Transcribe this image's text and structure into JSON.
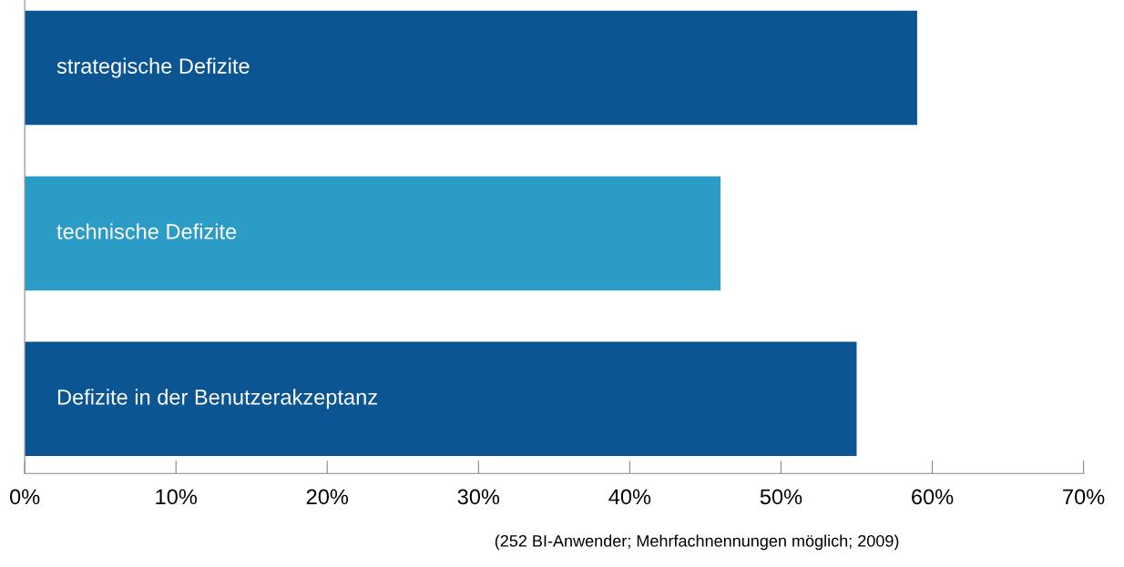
{
  "chart_data": {
    "type": "bar",
    "orientation": "horizontal",
    "categories": [
      "strategische Defizite",
      "technische Defizite",
      "Defizite in der Benutzerakzeptanz"
    ],
    "values": [
      59,
      46,
      55
    ],
    "colors": [
      "#0b5592",
      "#2a9cc6",
      "#0b5592"
    ],
    "xlim": [
      0,
      70
    ],
    "xticks": [
      {
        "value": 0,
        "label": "0%"
      },
      {
        "value": 10,
        "label": "10%"
      },
      {
        "value": 20,
        "label": "20%"
      },
      {
        "value": 30,
        "label": "30%"
      },
      {
        "value": 40,
        "label": "40%"
      },
      {
        "value": 50,
        "label": "50%"
      },
      {
        "value": 60,
        "label": "60%"
      },
      {
        "value": 70,
        "label": "70%"
      }
    ],
    "grid": false,
    "legend": false,
    "annotations": [
      "(252 BI-Anwender; Mehrfachnennungen möglich; 2009)"
    ]
  }
}
